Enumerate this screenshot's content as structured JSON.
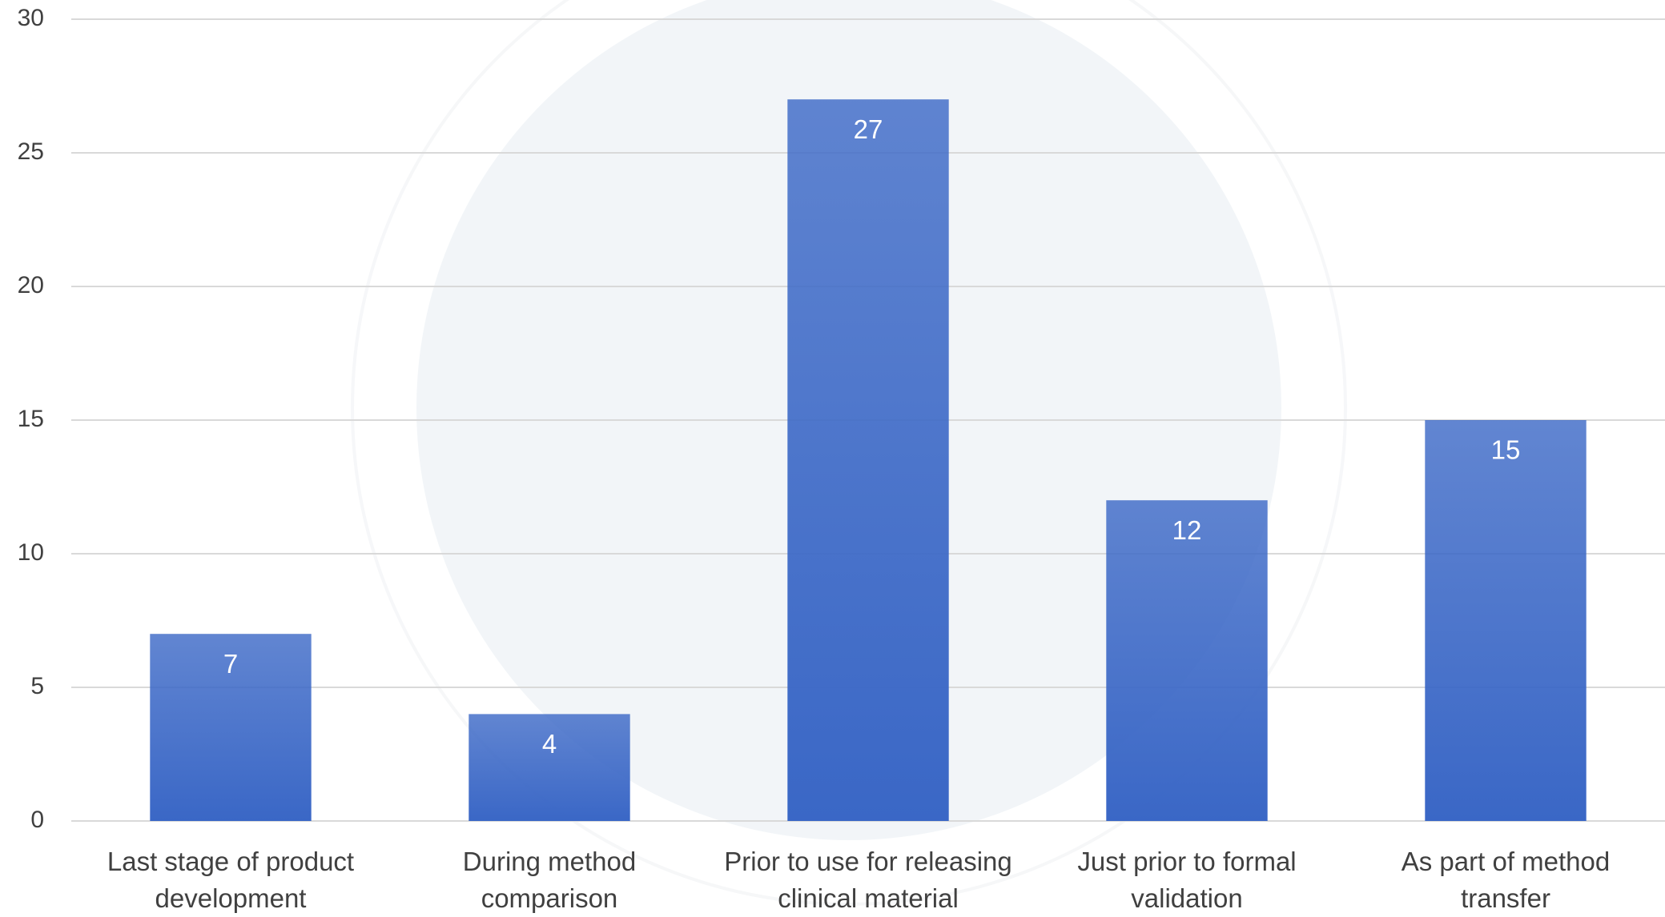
{
  "chart_data": {
    "type": "bar",
    "categories": [
      "Last stage of product development",
      "During method comparison",
      "Prior to use for releasing clinical material",
      "Just prior to formal validation",
      "As part of method transfer"
    ],
    "values": [
      7,
      4,
      27,
      12,
      15
    ],
    "color": "#3a67c6",
    "ylim": [
      0,
      30
    ],
    "yticks": [
      0,
      5,
      10,
      15,
      20,
      25,
      30
    ],
    "grid": true
  }
}
